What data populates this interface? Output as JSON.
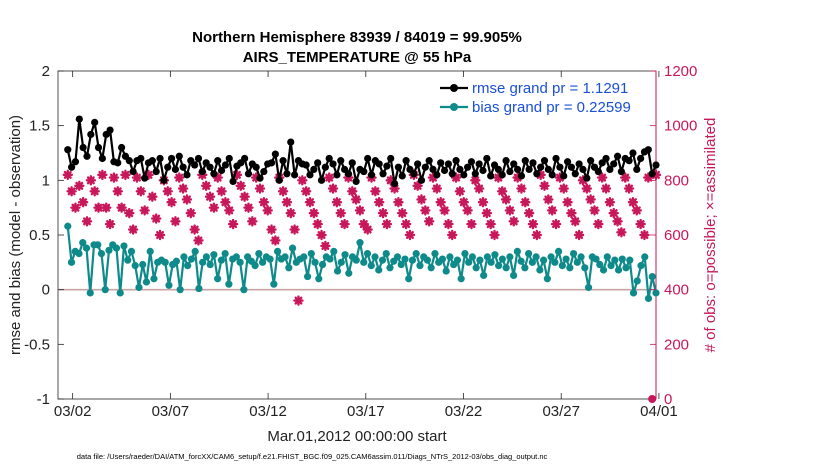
{
  "chart_data": {
    "type": "line",
    "title": "Northern Hemisphere 83939 / 84019 = 99.905%",
    "subtitle": "AIRS_TEMPERATURE @ 55 hPa",
    "xlabel": "Mar.01,2012 00:00:00 start",
    "ylabel": "rmse and bias (model - observation)",
    "ylabel_right": "# of obs: o=possible; ×=assimilated",
    "ylim": [
      -1,
      2
    ],
    "ylim_right": [
      0,
      1200
    ],
    "xlim": [
      0.5,
      31.1
    ],
    "x_ticks": [
      1.25,
      6.25,
      11.25,
      16.25,
      21.25,
      26.25,
      31.25
    ],
    "x_tick_labels": [
      "03/02",
      "03/07",
      "03/12",
      "03/17",
      "03/22",
      "03/27",
      "04/01"
    ],
    "y_ticks": [
      -1,
      -0.5,
      0,
      0.5,
      1,
      1.5,
      2
    ],
    "y_tick_labels": [
      "-1",
      "-0.5",
      "0",
      "0.5",
      "1",
      "1.5",
      "2"
    ],
    "y_right_ticks": [
      0,
      200,
      400,
      600,
      800,
      1000,
      1200
    ],
    "y_right_tick_labels": [
      "0",
      "200",
      "400",
      "600",
      "800",
      "1000",
      "1200"
    ],
    "series": [
      {
        "name": "rmse grand pr = 1.1291",
        "color": "#000000",
        "axis": "left",
        "values": [
          1.28,
          1.12,
          1.17,
          1.56,
          1.3,
          1.22,
          1.42,
          1.53,
          1.3,
          1.2,
          1.42,
          1.46,
          1.17,
          1.16,
          1.3,
          1.22,
          1.18,
          1.08,
          1.18,
          1.2,
          1.02,
          1.16,
          1.18,
          1.08,
          1.2,
          1.0,
          1.12,
          1.2,
          1.1,
          1.22,
          1.12,
          1.05,
          1.18,
          1.14,
          1.2,
          1.08,
          1.16,
          1.12,
          1.06,
          1.18,
          1.09,
          1.14,
          1.2,
          0.99,
          1.13,
          1.16,
          1.2,
          1.06,
          1.15,
          1.12,
          1.02,
          1.08,
          1.15,
          1.16,
          1.24,
          1.0,
          1.18,
          1.06,
          1.35,
          1.05,
          1.18,
          1.15,
          1.14,
          1.05,
          1.1,
          1.16,
          1.0,
          1.12,
          1.2,
          1.15,
          1.05,
          1.18,
          1.1,
          1.06,
          1.16,
          0.99,
          1.1,
          1.08,
          1.2,
          1.05,
          1.18,
          1.15,
          1.06,
          1.13,
          1.2,
          0.97,
          1.12,
          1.04,
          1.18,
          1.1,
          1.06,
          1.15,
          1.0,
          1.12,
          1.18,
          1.1,
          1.05,
          1.16,
          1.09,
          1.15,
          1.06,
          1.18,
          1.1,
          1.05,
          1.12,
          1.17,
          1.06,
          1.15,
          1.09,
          1.2,
          1.04,
          1.14,
          1.1,
          1.05,
          1.18,
          1.08,
          1.15,
          1.1,
          1.04,
          1.18,
          1.1,
          1.16,
          1.06,
          1.12,
          1.18,
          1.1,
          1.05,
          1.2,
          1.12,
          1.04,
          1.17,
          1.12,
          1.06,
          1.15,
          1.1,
          1.02,
          1.18,
          1.12,
          1.08,
          1.16,
          1.2,
          1.1,
          1.15,
          1.22,
          1.08,
          1.2,
          1.18,
          1.25,
          1.1,
          1.2,
          1.26,
          1.28,
          1.06,
          1.14
        ],
        "marker": "filled-circle"
      },
      {
        "name": "bias grand pr = 0.22599",
        "color": "#0f8a8a",
        "axis": "left",
        "values": [
          0.58,
          0.25,
          0.35,
          0.33,
          0.43,
          0.38,
          -0.03,
          0.41,
          0.41,
          0.33,
          0.0,
          0.36,
          0.41,
          0.38,
          -0.03,
          0.4,
          0.27,
          0.35,
          0.22,
          0.02,
          0.23,
          0.07,
          0.35,
          0.1,
          0.25,
          0.27,
          0.25,
          0.04,
          0.23,
          0.26,
          0.0,
          0.3,
          0.22,
          0.28,
          0.35,
          0.01,
          0.25,
          0.3,
          0.23,
          0.32,
          0.1,
          0.27,
          0.33,
          0.05,
          0.28,
          0.3,
          0.25,
          0.0,
          0.3,
          0.26,
          0.22,
          0.33,
          0.25,
          0.3,
          0.28,
          0.05,
          0.35,
          0.28,
          0.3,
          0.2,
          0.38,
          0.25,
          0.28,
          0.3,
          0.12,
          0.33,
          0.25,
          0.1,
          0.23,
          0.3,
          0.28,
          0.35,
          0.17,
          0.25,
          0.32,
          0.15,
          0.3,
          0.27,
          0.43,
          0.25,
          0.33,
          0.22,
          0.3,
          0.18,
          0.27,
          0.33,
          0.2,
          0.26,
          0.3,
          0.23,
          0.28,
          0.1,
          0.27,
          0.33,
          0.22,
          0.3,
          0.27,
          0.2,
          0.33,
          0.25,
          0.28,
          0.17,
          0.3,
          0.23,
          0.27,
          0.1,
          0.33,
          0.25,
          0.3,
          0.2,
          0.27,
          0.13,
          0.3,
          0.25,
          0.32,
          0.22,
          0.28,
          0.2,
          0.3,
          0.13,
          0.35,
          0.26,
          0.2,
          0.33,
          0.25,
          0.3,
          0.18,
          0.27,
          0.1,
          0.3,
          0.25,
          0.35,
          0.22,
          0.28,
          0.2,
          0.33,
          0.25,
          0.3,
          0.2,
          0.02,
          0.3,
          0.28,
          0.23,
          0.18,
          0.3,
          0.22,
          0.27,
          0.18,
          0.28,
          0.2,
          0.27,
          -0.03,
          0.08,
          0.22,
          0.3,
          -0.08,
          0.12,
          -0.03
        ],
        "marker": "filled-circle"
      },
      {
        "name": "# of obs assimilated",
        "color": "#c8175a",
        "axis": "right",
        "values": [
          820,
          760,
          700,
          780,
          720,
          650,
          800,
          760,
          700,
          820,
          700,
          640,
          810,
          760,
          700,
          820,
          680,
          620,
          810,
          760,
          690,
          820,
          740,
          660,
          600,
          800,
          760,
          720,
          650,
          810,
          770,
          730,
          680,
          620,
          580,
          820,
          780,
          740,
          700,
          810,
          760,
          720,
          690,
          640,
          820,
          780,
          740,
          700,
          650,
          810,
          770,
          720,
          690,
          620,
          580,
          810,
          760,
          720,
          680,
          620,
          360,
          800,
          760,
          720,
          680,
          640,
          600,
          560,
          810,
          770,
          720,
          680,
          640,
          810,
          760,
          730,
          690,
          640,
          620,
          810,
          760,
          720,
          680,
          640,
          800,
          770,
          720,
          680,
          640,
          600,
          820,
          780,
          730,
          690,
          650,
          810,
          770,
          720,
          690,
          640,
          600,
          810,
          760,
          720,
          690,
          640,
          800,
          770,
          720,
          680,
          640,
          600,
          810,
          760,
          730,
          690,
          650,
          810,
          770,
          720,
          680,
          640,
          600,
          820,
          780,
          730,
          690,
          640,
          810,
          770,
          720,
          680,
          650,
          600,
          800,
          770,
          730,
          690,
          640,
          810,
          770,
          720,
          680,
          650,
          610,
          810,
          770,
          720,
          690,
          640,
          600,
          810,
          0,
          820
        ],
        "marker": "asterisk"
      }
    ],
    "legend_position": "top-right",
    "zero_line": true
  },
  "footer": "data file: /Users/raeder/DAI/ATM_forcXX/CAM6_setup/f.e21.FHIST_BGC.f09_025.CAM6assim.011/Diags_NTrS_2012-03/obs_diag_output.nc"
}
